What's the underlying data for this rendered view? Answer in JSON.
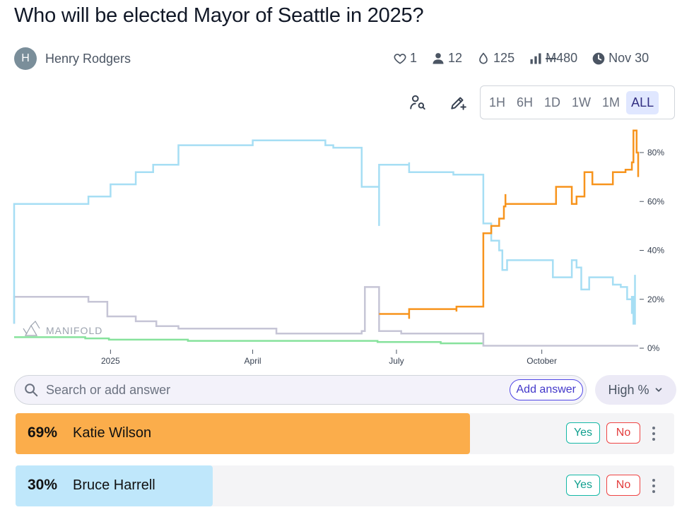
{
  "question": {
    "title": "Who will be elected Mayor of Seattle in 2025?"
  },
  "author": {
    "initial": "H",
    "name": "Henry Rodgers"
  },
  "stats": {
    "likes": "1",
    "traders": "12",
    "tips": "125",
    "volume": "480",
    "mana_symbol": "M",
    "close_date": "Nov 30"
  },
  "icons": {
    "like": "heart-icon",
    "traders": "user-icon",
    "tips": "droplet-icon",
    "volume": "bar-chart-icon",
    "close": "clock-icon",
    "track": "user-search-icon",
    "edit": "pencil-plus-icon",
    "search": "search-icon",
    "sort": "chevron-down-icon",
    "more": "more-vertical-icon"
  },
  "time_ranges": [
    "1H",
    "6H",
    "1D",
    "1W",
    "1M",
    "ALL"
  ],
  "active_range": "ALL",
  "watermark": "MANIFOLD",
  "search": {
    "placeholder": "Search or add answer",
    "add_label": "Add answer"
  },
  "sort": {
    "label": "High %"
  },
  "colors": {
    "wilson": "#f7941d",
    "harrell": "#a6def4",
    "gray": "#c6c5d6",
    "green": "#86e29c",
    "wilson_bar": "#fbad4b",
    "harrell_bar": "#bfe7fb"
  },
  "answers": [
    {
      "pct": "69%",
      "name": "Katie Wilson",
      "yes": "Yes",
      "no": "No",
      "prob": 0.69
    },
    {
      "pct": "30%",
      "name": "Bruce Harrell",
      "yes": "Yes",
      "no": "No",
      "prob": 0.3
    }
  ],
  "chart_data": {
    "type": "line",
    "x_unit": "days since 2024-11-01",
    "xlim": [
      0,
      395
    ],
    "ylim": [
      0,
      0.9
    ],
    "y_ticks": [
      {
        "value": 0,
        "label": "0%"
      },
      {
        "value": 0.2,
        "label": "20%"
      },
      {
        "value": 0.4,
        "label": "40%"
      },
      {
        "value": 0.6,
        "label": "60%"
      },
      {
        "value": 0.8,
        "label": "80%"
      }
    ],
    "x_ticks": [
      {
        "value": 61,
        "label": "2025"
      },
      {
        "value": 151,
        "label": "April"
      },
      {
        "value": 242,
        "label": "July"
      },
      {
        "value": 334,
        "label": "October"
      }
    ],
    "series": [
      {
        "name": "Bruce Harrell",
        "color": "#a6def4",
        "points": [
          [
            0,
            0.1
          ],
          [
            0,
            0.59
          ],
          [
            47,
            0.59
          ],
          [
            47,
            0.62
          ],
          [
            61,
            0.62
          ],
          [
            61,
            0.67
          ],
          [
            77,
            0.67
          ],
          [
            77,
            0.72
          ],
          [
            88,
            0.72
          ],
          [
            88,
            0.75
          ],
          [
            104,
            0.75
          ],
          [
            104,
            0.83
          ],
          [
            151,
            0.83
          ],
          [
            151,
            0.85
          ],
          [
            197,
            0.85
          ],
          [
            197,
            0.83
          ],
          [
            202,
            0.83
          ],
          [
            202,
            0.82
          ],
          [
            220,
            0.82
          ],
          [
            220,
            0.66
          ],
          [
            231,
            0.66
          ],
          [
            231,
            0.5
          ],
          [
            231,
            0.75
          ],
          [
            250,
            0.75
          ],
          [
            250,
            0.76
          ],
          [
            250,
            0.72
          ],
          [
            278,
            0.72
          ],
          [
            278,
            0.71
          ],
          [
            297,
            0.71
          ],
          [
            297,
            0.61
          ],
          [
            297,
            0.51
          ],
          [
            302,
            0.51
          ],
          [
            302,
            0.44
          ],
          [
            307,
            0.44
          ],
          [
            307,
            0.4
          ],
          [
            309,
            0.4
          ],
          [
            309,
            0.35
          ],
          [
            309,
            0.32
          ],
          [
            312,
            0.32
          ],
          [
            312,
            0.36
          ],
          [
            341,
            0.36
          ],
          [
            341,
            0.29
          ],
          [
            353,
            0.29
          ],
          [
            353,
            0.36
          ],
          [
            356,
            0.36
          ],
          [
            356,
            0.33
          ],
          [
            359,
            0.33
          ],
          [
            359,
            0.24
          ],
          [
            364,
            0.24
          ],
          [
            364,
            0.29
          ],
          [
            379,
            0.29
          ],
          [
            379,
            0.26
          ],
          [
            384,
            0.26
          ],
          [
            384,
            0.25
          ],
          [
            388,
            0.25
          ],
          [
            388,
            0.2
          ],
          [
            391,
            0.2
          ],
          [
            391,
            0.14
          ],
          [
            391,
            0.21
          ],
          [
            392,
            0.21
          ],
          [
            392,
            0.1
          ],
          [
            393,
            0.1
          ],
          [
            393,
            0.3
          ]
        ]
      },
      {
        "name": "Katie Wilson",
        "color": "#f7941d",
        "points": [
          [
            231,
            0.14
          ],
          [
            250,
            0.14
          ],
          [
            250,
            0.12
          ],
          [
            250,
            0.16
          ],
          [
            280,
            0.16
          ],
          [
            280,
            0.15
          ],
          [
            280,
            0.17
          ],
          [
            297,
            0.17
          ],
          [
            297,
            0.47
          ],
          [
            302,
            0.47
          ],
          [
            302,
            0.5
          ],
          [
            307,
            0.5
          ],
          [
            307,
            0.53
          ],
          [
            310,
            0.53
          ],
          [
            310,
            0.58
          ],
          [
            311,
            0.58
          ],
          [
            311,
            0.63
          ],
          [
            311,
            0.59
          ],
          [
            343,
            0.59
          ],
          [
            343,
            0.66
          ],
          [
            353,
            0.66
          ],
          [
            353,
            0.59
          ],
          [
            356,
            0.59
          ],
          [
            356,
            0.62
          ],
          [
            361,
            0.62
          ],
          [
            361,
            0.72
          ],
          [
            366,
            0.72
          ],
          [
            366,
            0.67
          ],
          [
            379,
            0.67
          ],
          [
            379,
            0.72
          ],
          [
            387,
            0.72
          ],
          [
            387,
            0.73
          ],
          [
            391,
            0.73
          ],
          [
            391,
            0.76
          ],
          [
            392,
            0.76
          ],
          [
            392,
            0.89
          ],
          [
            394,
            0.89
          ],
          [
            394,
            0.8
          ],
          [
            395,
            0.8
          ],
          [
            395,
            0.7
          ]
        ]
      },
      {
        "name": "Other (gray)",
        "color": "#c6c5d6",
        "points": [
          [
            0,
            0.1
          ],
          [
            0,
            0.21
          ],
          [
            47,
            0.21
          ],
          [
            47,
            0.19
          ],
          [
            59,
            0.19
          ],
          [
            59,
            0.13
          ],
          [
            77,
            0.13
          ],
          [
            77,
            0.11
          ],
          [
            90,
            0.11
          ],
          [
            90,
            0.09
          ],
          [
            104,
            0.09
          ],
          [
            104,
            0.08
          ],
          [
            166,
            0.08
          ],
          [
            166,
            0.06
          ],
          [
            220,
            0.06
          ],
          [
            220,
            0.07
          ],
          [
            222,
            0.07
          ],
          [
            222,
            0.25
          ],
          [
            231,
            0.25
          ],
          [
            231,
            0.11
          ],
          [
            231,
            0.07
          ],
          [
            245,
            0.07
          ],
          [
            245,
            0.06
          ],
          [
            297,
            0.06
          ],
          [
            297,
            0.01
          ],
          [
            395,
            0.01
          ]
        ]
      },
      {
        "name": "Other (green)",
        "color": "#86e29c",
        "points": [
          [
            0,
            0.045
          ],
          [
            45,
            0.045
          ],
          [
            45,
            0.04
          ],
          [
            60,
            0.04
          ],
          [
            60,
            0.035
          ],
          [
            110,
            0.035
          ],
          [
            110,
            0.03
          ],
          [
            230,
            0.03
          ],
          [
            230,
            0.025
          ],
          [
            270,
            0.025
          ],
          [
            270,
            0.02
          ],
          [
            297,
            0.02
          ]
        ]
      }
    ]
  }
}
